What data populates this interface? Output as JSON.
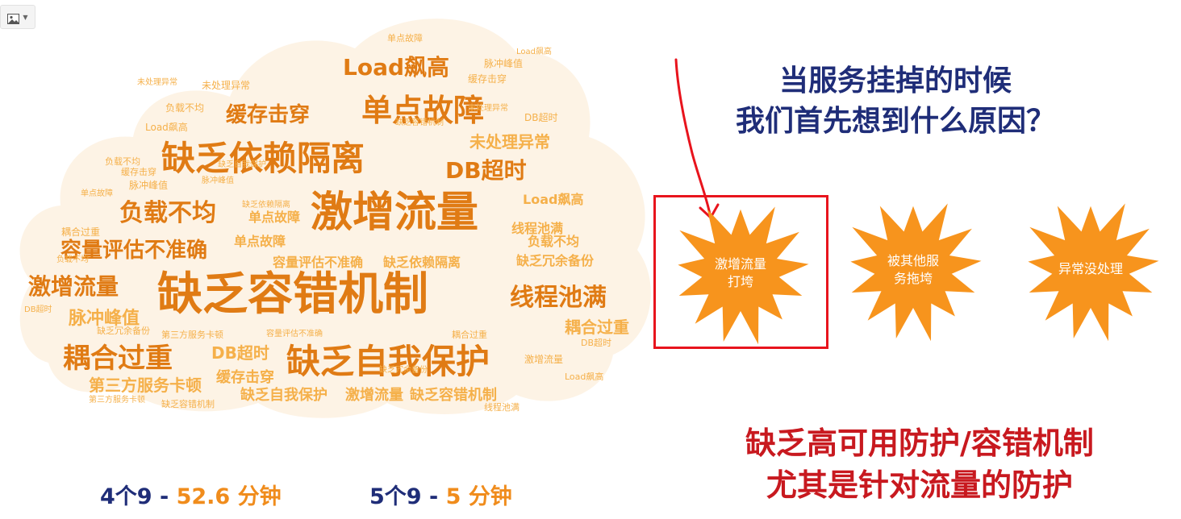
{
  "question": {
    "line1": "当服务挂掉的时候",
    "line2": "我们首先想到什么原因？"
  },
  "bursts": [
    {
      "label_line1": "激增流量",
      "label_line2": "打垮",
      "highlighted": true
    },
    {
      "label_line1": "被其他服",
      "label_line2": "务拖垮",
      "highlighted": false
    },
    {
      "label_line1": "异常没处理",
      "label_line2": "",
      "highlighted": false
    }
  ],
  "conclusion": {
    "line1": "缺乏高可用防护/容错机制",
    "line2": "尤其是针对流量的防护"
  },
  "sla": [
    {
      "nines": "4个9",
      "dash": " - ",
      "time": "52.6 分钟"
    },
    {
      "nines": "5个9",
      "dash": " - ",
      "time": "5 分钟"
    }
  ],
  "colors": {
    "question": "#1f2d78",
    "conclusion": "#c8191f",
    "burst": "#f7941d",
    "highlight_box": "#e8141d",
    "arrow": "#e8141d",
    "cloud_dark": "#e07b14",
    "cloud_light": "#f5b04a"
  },
  "word_cloud": [
    {
      "text": "激增流量",
      "size": 52
    },
    {
      "text": "缺乏容错机制",
      "size": 56
    },
    {
      "text": "缺乏依赖隔离",
      "size": 42
    },
    {
      "text": "缺乏自我保护",
      "size": 42
    },
    {
      "text": "单点故障",
      "size": 38
    },
    {
      "text": "Load飙高",
      "size": 28
    },
    {
      "text": "缓存击穿",
      "size": 26
    },
    {
      "text": "DB超时",
      "size": 28
    },
    {
      "text": "负载不均",
      "size": 30
    },
    {
      "text": "容量评估不准确",
      "size": 26
    },
    {
      "text": "线程池满",
      "size": 30
    },
    {
      "text": "耦合过重",
      "size": 34
    },
    {
      "text": "激增流量",
      "size": 28
    },
    {
      "text": "脉冲峰值",
      "size": 22
    },
    {
      "text": "未处理异常",
      "size": 20
    },
    {
      "text": "第三方服务卡顿",
      "size": 20
    },
    {
      "text": "缓存击穿",
      "size": 18
    },
    {
      "text": "缺乏自我保护",
      "size": 18
    },
    {
      "text": "激增流量",
      "size": 18
    },
    {
      "text": "缺乏容错机制",
      "size": 18
    },
    {
      "text": "DB超时",
      "size": 20
    },
    {
      "text": "耦合过重",
      "size": 20
    },
    {
      "text": "线程池满",
      "size": 16
    },
    {
      "text": "负载不均",
      "size": 16
    },
    {
      "text": "缺乏冗余备份",
      "size": 16
    },
    {
      "text": "缺乏依赖隔离",
      "size": 16
    },
    {
      "text": "容量评估不准确",
      "size": 16
    },
    {
      "text": "单点故障",
      "size": 16
    },
    {
      "text": "Load飙高",
      "size": 16
    },
    {
      "text": "单点故障",
      "size": 16
    },
    {
      "text": "负载不均",
      "size": 12
    },
    {
      "text": "Load飙高",
      "size": 12
    },
    {
      "text": "缓存击穿",
      "size": 12
    },
    {
      "text": "脉冲峰值",
      "size": 12
    },
    {
      "text": "DB超时",
      "size": 12
    },
    {
      "text": "未处理异常",
      "size": 12
    },
    {
      "text": "负载不均",
      "size": 11
    },
    {
      "text": "耦合过重",
      "size": 12
    },
    {
      "text": "缺乏冗余备份",
      "size": 11
    },
    {
      "text": "第三方服务卡顿",
      "size": 11
    },
    {
      "text": "缺乏容错机制",
      "size": 11
    },
    {
      "text": "脉冲峰值",
      "size": 12
    },
    {
      "text": "DB超时",
      "size": 11
    },
    {
      "text": "Load飙高",
      "size": 11
    },
    {
      "text": "激增流量",
      "size": 12
    },
    {
      "text": "单点故障",
      "size": 11
    },
    {
      "text": "缓存击穿",
      "size": 11
    },
    {
      "text": "未处理异常",
      "size": 10
    },
    {
      "text": "线程池满",
      "size": 11
    },
    {
      "text": "耦合过重",
      "size": 11
    },
    {
      "text": "缺乏依赖隔离",
      "size": 10
    },
    {
      "text": "负载不均",
      "size": 10
    },
    {
      "text": "DB超时",
      "size": 10
    },
    {
      "text": "容量评估不准确",
      "size": 10
    },
    {
      "text": "脉冲峰值",
      "size": 10
    },
    {
      "text": "缺乏冗余备份",
      "size": 10
    },
    {
      "text": "单点故障",
      "size": 10
    },
    {
      "text": "Load飙高",
      "size": 10
    },
    {
      "text": "缺乏自我保护",
      "size": 10
    },
    {
      "text": "未处理异常",
      "size": 10
    },
    {
      "text": "缺乏容错机制",
      "size": 10
    },
    {
      "text": "第三方服务卡顿",
      "size": 10
    }
  ]
}
